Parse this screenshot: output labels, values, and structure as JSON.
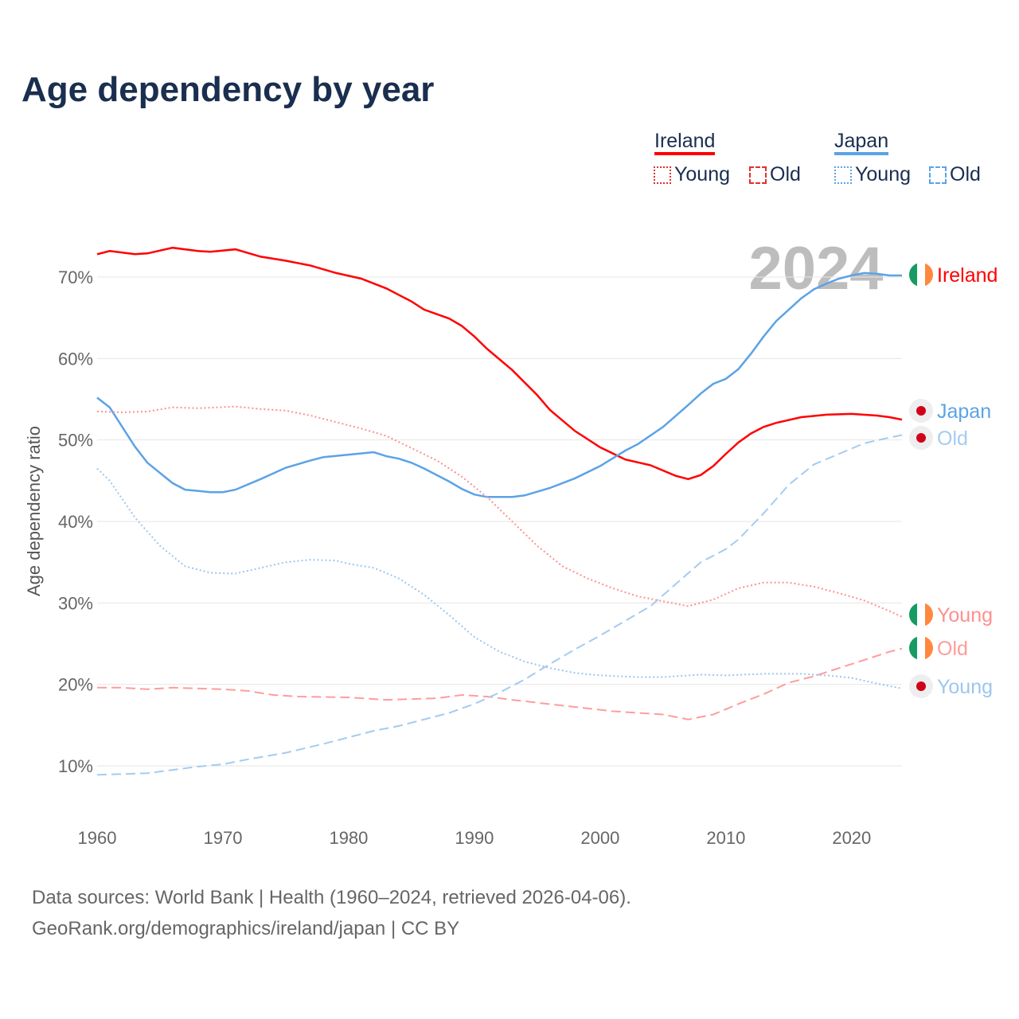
{
  "chart_data": {
    "type": "line",
    "title": "Age dependency by year",
    "ylabel": "Age dependency ratio",
    "xlabel": "",
    "xlim": [
      1960,
      2024
    ],
    "ylim": [
      5,
      75
    ],
    "xticks": [
      "1960",
      "1970",
      "1980",
      "1990",
      "2000",
      "2010",
      "2020"
    ],
    "yticks": [
      {
        "v": 10,
        "label": "10%"
      },
      {
        "v": 20,
        "label": "20%"
      },
      {
        "v": 30,
        "label": "30%"
      },
      {
        "v": 40,
        "label": "40%"
      },
      {
        "v": 50,
        "label": "50%"
      },
      {
        "v": 60,
        "label": "60%"
      },
      {
        "v": 70,
        "label": "70%"
      }
    ],
    "year_watermark": "2024",
    "legend": {
      "countries": [
        {
          "name": "Ireland",
          "color": "#ff0000"
        },
        {
          "name": "Japan",
          "color": "#5ba3e6"
        }
      ],
      "young": "Young",
      "old": "Old"
    },
    "series": [
      {
        "name": "Ireland",
        "label": "Ireland",
        "country": "ie",
        "style": "solid",
        "color": "#ff0000",
        "x": [
          1960,
          1961,
          1963,
          1964,
          1966,
          1968,
          1969,
          1971,
          1973,
          1975,
          1977,
          1979,
          1981,
          1983,
          1985,
          1986,
          1988,
          1989,
          1990,
          1991,
          1993,
          1995,
          1996,
          1998,
          2000,
          2002,
          2004,
          2006,
          2007,
          2008,
          2009,
          2010,
          2011,
          2012,
          2013,
          2014,
          2016,
          2018,
          2020,
          2022,
          2023,
          2024
        ],
        "y": [
          72.8,
          73.2,
          72.8,
          72.9,
          73.6,
          73.2,
          73.1,
          73.4,
          72.5,
          72.0,
          71.4,
          70.5,
          69.8,
          68.6,
          67.0,
          66.0,
          64.9,
          64.0,
          62.7,
          61.2,
          58.6,
          55.5,
          53.7,
          51.1,
          49.1,
          47.6,
          46.9,
          45.6,
          45.2,
          45.7,
          46.8,
          48.3,
          49.7,
          50.8,
          51.6,
          52.1,
          52.8,
          53.1,
          53.2,
          53.0,
          52.8,
          52.5
        ]
      },
      {
        "name": "Japan",
        "label": "Japan",
        "country": "jp",
        "style": "solid",
        "color": "#5ba3e6",
        "x": [
          1960,
          1961,
          1963,
          1964,
          1966,
          1967,
          1969,
          1970,
          1971,
          1973,
          1975,
          1977,
          1978,
          1980,
          1982,
          1983,
          1984,
          1985,
          1986,
          1988,
          1989,
          1990,
          1991,
          1993,
          1994,
          1996,
          1998,
          2000,
          2002,
          2003,
          2005,
          2007,
          2008,
          2009,
          2010,
          2011,
          2012,
          2013,
          2014,
          2016,
          2017,
          2018,
          2019,
          2020,
          2021,
          2022,
          2023,
          2024
        ],
        "y": [
          55.2,
          54.0,
          49.2,
          47.2,
          44.7,
          43.9,
          43.6,
          43.6,
          43.9,
          45.2,
          46.6,
          47.5,
          47.9,
          48.2,
          48.5,
          48.0,
          47.7,
          47.2,
          46.5,
          44.9,
          44.0,
          43.3,
          43.0,
          43.0,
          43.2,
          44.1,
          45.3,
          46.8,
          48.7,
          49.5,
          51.6,
          54.3,
          55.7,
          56.9,
          57.5,
          58.7,
          60.6,
          62.7,
          64.6,
          67.4,
          68.5,
          69.2,
          69.8,
          70.2,
          70.5,
          70.4,
          70.2,
          70.2
        ]
      },
      {
        "name": "Ireland Young",
        "label": "Young",
        "country": "ie",
        "style": "dotted",
        "color": "#ff8f8f",
        "x": [
          1960,
          1962,
          1964,
          1966,
          1968,
          1971,
          1973,
          1975,
          1977,
          1979,
          1981,
          1983,
          1985,
          1987,
          1989,
          1991,
          1993,
          1995,
          1997,
          1999,
          2001,
          2003,
          2005,
          2007,
          2009,
          2011,
          2013,
          2015,
          2017,
          2019,
          2021,
          2023,
          2024
        ],
        "y": [
          53.5,
          53.4,
          53.5,
          54.0,
          53.9,
          54.1,
          53.8,
          53.6,
          53.0,
          52.2,
          51.4,
          50.5,
          49.0,
          47.5,
          45.5,
          43.0,
          40.0,
          37.0,
          34.5,
          33.0,
          31.8,
          30.8,
          30.2,
          29.6,
          30.4,
          31.8,
          32.5,
          32.5,
          32.0,
          31.2,
          30.3,
          29.0,
          28.3
        ]
      },
      {
        "name": "Ireland Old",
        "label": "Old",
        "country": "ie",
        "style": "dashed",
        "color": "#ff9c9c",
        "x": [
          1960,
          1962,
          1964,
          1966,
          1970,
          1972,
          1974,
          1976,
          1980,
          1983,
          1987,
          1989,
          1991,
          1993,
          1997,
          2001,
          2005,
          2007,
          2009,
          2011,
          2013,
          2015,
          2017,
          2019,
          2021,
          2023,
          2024
        ],
        "y": [
          19.6,
          19.6,
          19.4,
          19.6,
          19.4,
          19.2,
          18.7,
          18.5,
          18.4,
          18.1,
          18.3,
          18.7,
          18.5,
          18.1,
          17.4,
          16.7,
          16.3,
          15.7,
          16.3,
          17.6,
          18.8,
          20.2,
          21.0,
          22.0,
          23.0,
          24.0,
          24.4
        ]
      },
      {
        "name": "Japan Young",
        "label": "Young",
        "country": "jp",
        "style": "dotted",
        "color": "#9cc6ef",
        "x": [
          1960,
          1961,
          1963,
          1965,
          1967,
          1969,
          1971,
          1973,
          1975,
          1977,
          1979,
          1980,
          1982,
          1984,
          1986,
          1988,
          1990,
          1992,
          1994,
          1996,
          1998,
          2000,
          2003,
          2005,
          2008,
          2010,
          2013,
          2016,
          2018,
          2020,
          2022,
          2024
        ],
        "y": [
          46.5,
          45.0,
          40.5,
          37.0,
          34.5,
          33.7,
          33.6,
          34.3,
          35.0,
          35.3,
          35.2,
          34.8,
          34.3,
          33.0,
          31.0,
          28.5,
          25.8,
          24.0,
          22.8,
          22.0,
          21.4,
          21.1,
          20.9,
          20.9,
          21.2,
          21.1,
          21.3,
          21.3,
          21.1,
          20.8,
          20.1,
          19.5
        ]
      },
      {
        "name": "Japan Old",
        "label": "Old",
        "country": "jp",
        "style": "dashed",
        "color": "#a5cbf0",
        "x": [
          1960,
          1964,
          1966,
          1968,
          1970,
          1972,
          1975,
          1978,
          1980,
          1982,
          1984,
          1986,
          1988,
          1990,
          1992,
          1994,
          1996,
          1998,
          2000,
          2002,
          2004,
          2006,
          2008,
          2010,
          2011,
          2013,
          2015,
          2017,
          2019,
          2021,
          2023,
          2024
        ],
        "y": [
          8.9,
          9.1,
          9.5,
          9.9,
          10.2,
          10.8,
          11.6,
          12.7,
          13.5,
          14.3,
          14.9,
          15.7,
          16.5,
          17.6,
          19.0,
          20.6,
          22.5,
          24.3,
          26.0,
          27.8,
          29.6,
          32.3,
          35.0,
          36.6,
          37.8,
          41.0,
          44.5,
          47.0,
          48.3,
          49.6,
          50.3,
          50.6
        ]
      }
    ]
  },
  "source": {
    "line1": "Data sources: World Bank | Health (1960–2024, retrieved 2026-04-06).",
    "line2": "GeoRank.org/demographics/ireland/japan | CC BY"
  }
}
